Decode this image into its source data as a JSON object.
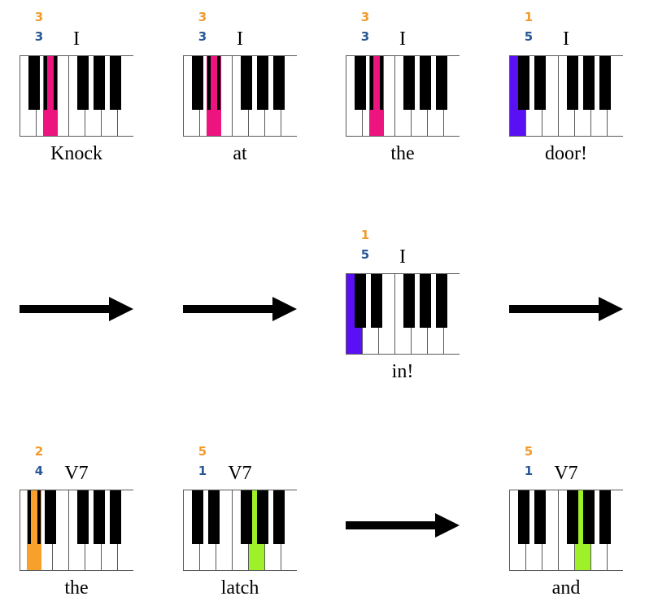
{
  "colors": {
    "right_finger": "#f29a2e",
    "left_finger": "#2a5896",
    "magenta": "#ee1480",
    "blue": "#5a10f5",
    "orange": "#f8a02c",
    "green": "#9ef028"
  },
  "rows": [
    [
      {
        "kind": "keyboard",
        "finger_right": "3",
        "finger_left": "3",
        "chord": "I",
        "word": "Knock",
        "highlight": {
          "type": "black",
          "index": 1,
          "color": "magenta"
        }
      },
      {
        "kind": "keyboard",
        "finger_right": "3",
        "finger_left": "3",
        "chord": "I",
        "word": "at",
        "highlight": {
          "type": "black",
          "index": 1,
          "color": "magenta"
        }
      },
      {
        "kind": "keyboard",
        "finger_right": "3",
        "finger_left": "3",
        "chord": "I",
        "word": "the",
        "highlight": {
          "type": "black",
          "index": 1,
          "color": "magenta"
        }
      },
      {
        "kind": "keyboard",
        "finger_right": "1",
        "finger_left": "5",
        "chord": "I",
        "word": "door!",
        "highlight": {
          "type": "white",
          "index": 0,
          "color": "blue"
        }
      }
    ],
    [
      {
        "kind": "arrow"
      },
      {
        "kind": "arrow"
      },
      {
        "kind": "keyboard",
        "finger_right": "1",
        "finger_left": "5",
        "chord": "I",
        "word": "in!",
        "highlight": {
          "type": "white",
          "index": 0,
          "color": "blue"
        }
      },
      {
        "kind": "arrow"
      }
    ],
    [
      {
        "kind": "keyboard",
        "finger_right": "2",
        "finger_left": "4",
        "chord": "V7",
        "word": "the",
        "highlight": {
          "type": "black",
          "index": 0,
          "color": "orange"
        }
      },
      {
        "kind": "keyboard",
        "finger_right": "5",
        "finger_left": "1",
        "chord": "V7",
        "word": "latch",
        "highlight": {
          "type": "white",
          "index": 4,
          "color": "green"
        }
      },
      {
        "kind": "arrow"
      },
      {
        "kind": "keyboard",
        "finger_right": "5",
        "finger_left": "1",
        "chord": "V7",
        "word": "and",
        "highlight": {
          "type": "white",
          "index": 4,
          "color": "green"
        }
      }
    ]
  ]
}
